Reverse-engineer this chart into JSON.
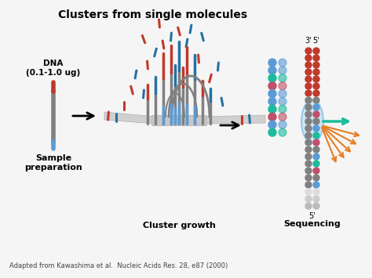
{
  "title": "Clusters from single molecules",
  "title_fontsize": 10,
  "title_fontweight": "bold",
  "bg_color": "#f5f5f5",
  "citation": "Adapted from Kawashima et al.  Nucleic Acids Res. 28, e87 (2000)",
  "citation_fontsize": 6,
  "label_sample": "Sample\npreparation",
  "label_cluster": "Cluster growth",
  "label_seq": "Sequencing",
  "label_dna": "DNA\n(0.1-1.0 ug)",
  "red": "#c0392b",
  "blue": "#2471a3",
  "blue2": "#5b9bd5",
  "gray": "#808080",
  "gray2": "#aaaaaa",
  "orange": "#e67e22",
  "green": "#1abc9c",
  "pink": "#c0506a",
  "white": "#ffffff",
  "lightgray_platform": "#c8c8c8",
  "platform_edge": "#aaaaaa"
}
